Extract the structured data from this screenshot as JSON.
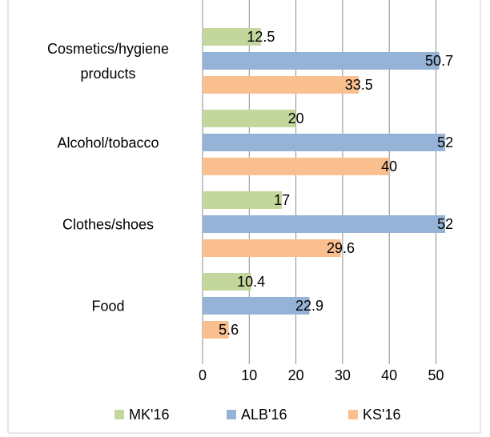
{
  "chart_data": {
    "type": "bar",
    "orientation": "horizontal",
    "categories": [
      "Cosmetics/hygiene products",
      "Alcohol/tobacco",
      "Clothes/shoes",
      "Food"
    ],
    "series": [
      {
        "name": "MK'16",
        "color": "#c3d69b",
        "values": [
          12.5,
          20,
          17,
          10.4
        ]
      },
      {
        "name": "ALB'16",
        "color": "#95b3d7",
        "values": [
          50.7,
          52,
          52,
          22.9
        ]
      },
      {
        "name": "KS'16",
        "color": "#fabf8f",
        "values": [
          33.5,
          40,
          29.6,
          5.6
        ]
      }
    ],
    "xlim": [
      0,
      55
    ],
    "xticks": [
      0,
      10,
      20,
      30,
      40,
      50
    ],
    "grid": true,
    "legend": "bottom"
  }
}
